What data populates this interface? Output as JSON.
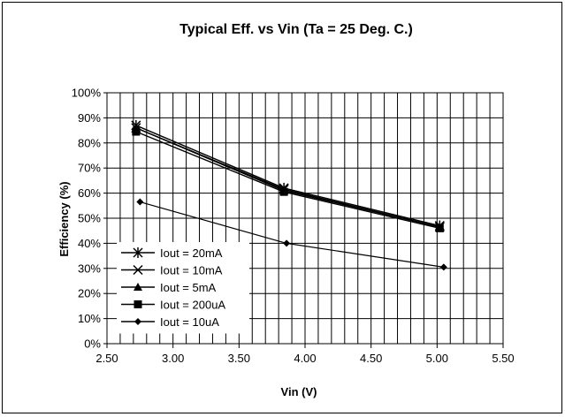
{
  "chart_data": {
    "type": "line",
    "title": "Typical Eff. vs Vin (Ta = 25 Deg. C.)",
    "xlabel": "Vin (V)",
    "ylabel": "Efficiency (%)",
    "xlim": [
      2.5,
      5.5
    ],
    "ylim": [
      0,
      100
    ],
    "x_ticks": [
      "2.50",
      "3.00",
      "3.50",
      "4.00",
      "4.50",
      "5.00",
      "5.50"
    ],
    "y_ticks": [
      "0%",
      "10%",
      "20%",
      "30%",
      "40%",
      "50%",
      "60%",
      "70%",
      "80%",
      "90%",
      "100%"
    ],
    "grid": true,
    "legend_position": "bottom-left",
    "series": [
      {
        "name": "Iout = 20mA",
        "marker": "asterisk",
        "x": [
          2.72,
          3.84,
          5.02
        ],
        "y": [
          87,
          62,
          47
        ]
      },
      {
        "name": "Iout = 10mA",
        "marker": "x",
        "x": [
          2.72,
          3.84,
          5.02
        ],
        "y": [
          86,
          61.5,
          46.5
        ]
      },
      {
        "name": "Iout = 5mA",
        "marker": "triangle",
        "x": [
          2.72,
          3.84,
          5.02
        ],
        "y": [
          86,
          61,
          46.5
        ]
      },
      {
        "name": "Iout = 200uA",
        "marker": "square",
        "x": [
          2.72,
          3.84,
          5.02
        ],
        "y": [
          84.5,
          60.5,
          46
        ]
      },
      {
        "name": "Iout = 10uA",
        "marker": "diamond",
        "x": [
          2.75,
          3.86,
          5.05
        ],
        "y": [
          56.5,
          40,
          30.5
        ]
      }
    ]
  }
}
